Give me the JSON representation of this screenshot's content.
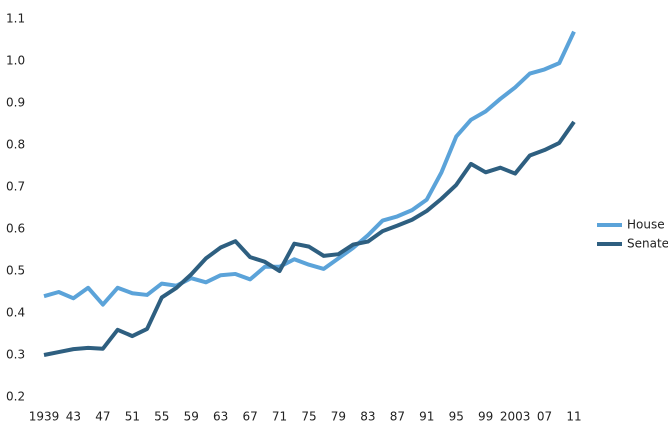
{
  "chart_data": {
    "type": "line",
    "categories": [
      "1939",
      null,
      "43",
      null,
      "47",
      null,
      "51",
      null,
      "55",
      null,
      "59",
      null,
      "63",
      null,
      "67",
      null,
      "71",
      null,
      "75",
      null,
      "79",
      null,
      "83",
      null,
      "87",
      null,
      "91",
      null,
      "95",
      null,
      "99",
      null,
      "2003",
      null,
      "07",
      null,
      "11"
    ],
    "series": [
      {
        "name": "House",
        "color": "#5ba3d9",
        "values": [
          0.44,
          0.45,
          0.435,
          0.46,
          0.42,
          0.46,
          0.447,
          0.443,
          0.47,
          0.465,
          0.483,
          0.473,
          0.49,
          0.493,
          0.48,
          0.51,
          0.51,
          0.528,
          0.515,
          0.505,
          0.53,
          0.555,
          0.585,
          0.62,
          0.63,
          0.645,
          0.67,
          0.735,
          0.82,
          0.86,
          0.88,
          0.91,
          0.937,
          0.97,
          0.98,
          0.995,
          1.07
        ]
      },
      {
        "name": "Senate",
        "color": "#2e5f80",
        "values": [
          0.3,
          0.307,
          0.314,
          0.317,
          0.315,
          0.36,
          0.345,
          0.362,
          0.437,
          0.46,
          0.492,
          0.53,
          0.556,
          0.571,
          0.533,
          0.522,
          0.5,
          0.565,
          0.558,
          0.536,
          0.54,
          0.563,
          0.57,
          0.595,
          0.608,
          0.622,
          0.643,
          0.672,
          0.705,
          0.755,
          0.735,
          0.746,
          0.732,
          0.775,
          0.788,
          0.805,
          0.855
        ]
      }
    ],
    "ylim": [
      0.2,
      1.1
    ],
    "yticks": [
      0.2,
      0.3,
      0.4,
      0.5,
      0.6,
      0.7,
      0.8,
      0.9,
      {
        "value": 1.0,
        "label": "1.0"
      },
      1.1
    ],
    "grid": false,
    "legend": "right"
  }
}
